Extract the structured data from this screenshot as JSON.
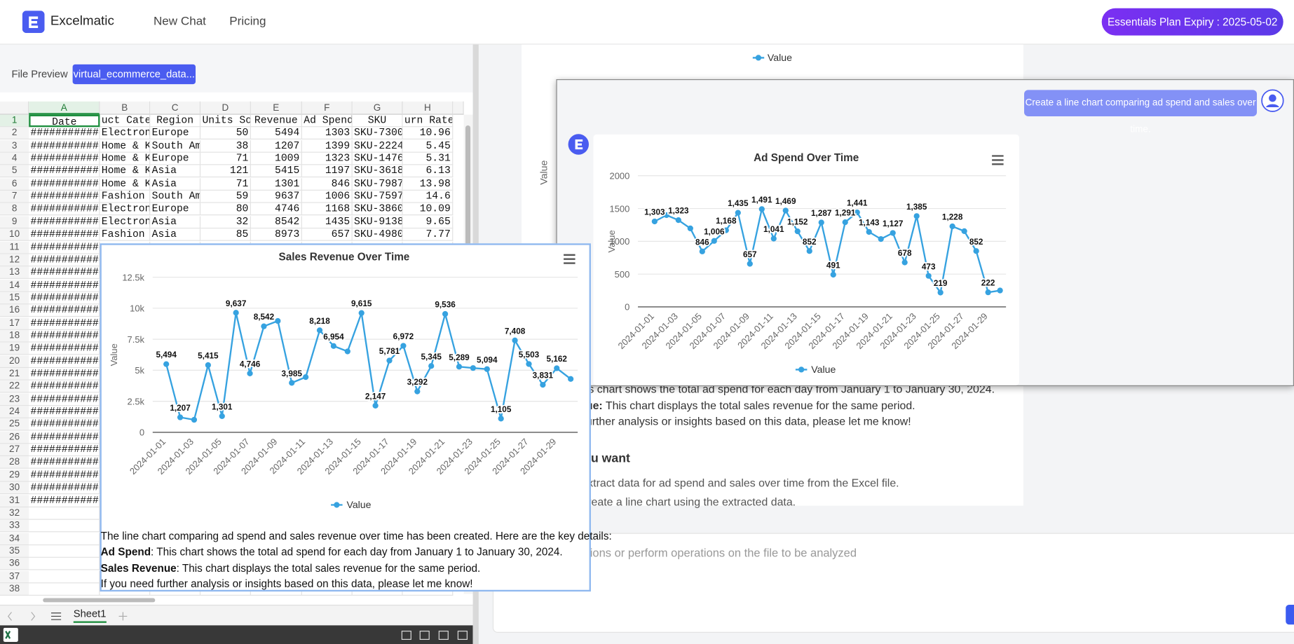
{
  "header": {
    "brand": "Excelmatic",
    "nav": [
      "New Chat",
      "Pricing"
    ],
    "plan": "Essentials Plan Expiry : 2025-05-02"
  },
  "file_preview": {
    "label": "File Preview",
    "file": "virtual_ecommerce_data..."
  },
  "spreadsheet": {
    "columns": [
      "A",
      "B",
      "C",
      "D",
      "E",
      "F",
      "G",
      "H"
    ],
    "row_numbers": [
      1,
      2,
      3,
      4,
      5,
      6,
      7,
      8,
      9,
      10,
      11,
      12,
      13,
      14,
      15,
      16,
      17,
      18,
      19,
      20,
      21,
      22,
      23,
      24,
      25,
      26,
      27,
      28,
      29,
      30,
      31,
      32,
      33,
      34,
      35,
      36,
      37,
      38
    ],
    "rows": [
      [
        "Date",
        "uct Categ",
        "Region",
        "Units Sol",
        "Revenue",
        "Ad Spend",
        "SKU",
        "urn Rate (%"
      ],
      [
        "############",
        "Electroni",
        "Europe",
        50,
        5494,
        1303,
        "SKU-7300",
        10.96
      ],
      [
        "############",
        "Home & Ki",
        "South Ame",
        38,
        1207,
        1399,
        "SKU-2224",
        5.45
      ],
      [
        "############",
        "Home & Ki",
        "Europe",
        71,
        1009,
        1323,
        "SKU-1476",
        5.31
      ],
      [
        "############",
        "Home & Ki",
        "Asia",
        121,
        5415,
        1197,
        "SKU-3618",
        6.13
      ],
      [
        "############",
        "Home & Ki",
        "Asia",
        71,
        1301,
        846,
        "SKU-7987",
        13.98
      ],
      [
        "############",
        "Fashion",
        "South Ame",
        59,
        9637,
        1006,
        "SKU-7597",
        14.6
      ],
      [
        "############",
        "Electroni",
        "Europe",
        80,
        4746,
        1168,
        "SKU-3860",
        10.09
      ],
      [
        "############",
        "Electroni",
        "Asia",
        32,
        8542,
        1435,
        "SKU-9138",
        9.65
      ],
      [
        "############",
        "Fashion",
        "Asia",
        85,
        8973,
        657,
        "SKU-4980",
        7.77
      ],
      [
        "############"
      ],
      [
        "############"
      ],
      [
        "############"
      ],
      [
        "############"
      ],
      [
        "############"
      ],
      [
        "############"
      ],
      [
        "############"
      ],
      [
        "############"
      ],
      [
        "############"
      ],
      [
        "############"
      ],
      [
        "############"
      ],
      [
        "############"
      ],
      [
        "############"
      ],
      [
        "############"
      ],
      [
        "############"
      ],
      [
        "############"
      ],
      [
        "############"
      ],
      [
        "############"
      ],
      [
        "############"
      ],
      [
        "############"
      ],
      [
        "############"
      ]
    ],
    "sheet_tab": "Sheet1"
  },
  "background_chat": {
    "legend": "Value",
    "y_label": "Value",
    "lines": [
      "is chart shows the total ad spend for each day from January 1 to January 30, 2024.",
      "This chart displays the total sales revenue for the same period.",
      "urther analysis or insights based on this data, please let me know!"
    ],
    "line2_label": "ue:",
    "heading": "u want",
    "steps": [
      "xtract data for ad spend and sales over time from the Excel file.",
      "reate a line chart using the extracted data."
    ],
    "input_placeholder": "ions or perform operations on the file to be analyzed"
  },
  "user_message": "Create a line chart comparing ad spend and sales over time.",
  "summary": {
    "intro": "The line chart comparing ad spend and sales revenue over time has been created. Here are the key details:",
    "items": [
      {
        "label": "Ad Spend",
        "text": ": This chart shows the total ad spend for each day from January 1 to January 30, 2024."
      },
      {
        "label": "Sales Revenue",
        "text": ": This chart displays the total sales revenue for the same period."
      }
    ],
    "outro": "If you need further analysis or insights based on this data, please let me know!"
  },
  "chart_data": [
    {
      "type": "line",
      "title": "Sales Revenue Over Time",
      "y_label": "Value",
      "categories": [
        "2024-01-01",
        null,
        "2024-01-03",
        null,
        "2024-01-05",
        null,
        "2024-01-07",
        null,
        "2024-01-09",
        null,
        "2024-01-11",
        null,
        "2024-01-13",
        null,
        "2024-01-15",
        null,
        "2024-01-17",
        null,
        "2024-01-19",
        null,
        "2024-01-21",
        null,
        "2024-01-23",
        null,
        "2024-01-25",
        null,
        "2024-01-27",
        null,
        "2024-01-29",
        null
      ],
      "series": [
        {
          "name": "Value",
          "color": "#36a2e0",
          "values": [
            5494,
            1207,
            1009,
            5415,
            1301,
            9637,
            4746,
            8542,
            8973,
            3985,
            4450,
            8218,
            6954,
            6520,
            9615,
            2147,
            5781,
            6972,
            3292,
            5345,
            9536,
            5289,
            5180,
            5094,
            1105,
            7408,
            5503,
            3831,
            5162,
            4300
          ],
          "value_labels": [
            "5,494",
            "1,207",
            null,
            "5,415",
            "1,301",
            "9,637",
            "4,746",
            "8,542",
            null,
            "3,985",
            null,
            "8,218",
            "6,954",
            null,
            "9,615",
            "2,147",
            "5,781",
            "6,972",
            "3,292",
            "5,345",
            "9,536",
            "5,289",
            null,
            "5,094",
            "1,105",
            "7,408",
            "5,503",
            "3,831",
            "5,162",
            null
          ]
        }
      ],
      "ylim": [
        0,
        12500
      ],
      "yticks": [
        0,
        {
          "value": 2500,
          "label": "2.5k"
        },
        {
          "value": 5000,
          "label": "5k"
        },
        {
          "value": 7500,
          "label": "7.5k"
        },
        {
          "value": 10000,
          "label": "10k"
        },
        {
          "value": 12500,
          "label": "12.5k"
        }
      ],
      "grid": true,
      "legend": "bottom"
    },
    {
      "type": "line",
      "title": "Ad Spend Over Time",
      "y_label": "Value",
      "categories": [
        "2024-01-01",
        null,
        "2024-01-03",
        null,
        "2024-01-05",
        null,
        "2024-01-07",
        null,
        "2024-01-09",
        null,
        "2024-01-11",
        null,
        "2024-01-13",
        null,
        "2024-01-15",
        null,
        "2024-01-17",
        null,
        "2024-01-19",
        null,
        "2024-01-21",
        null,
        "2024-01-23",
        null,
        "2024-01-25",
        null,
        "2024-01-27",
        null,
        "2024-01-29",
        null
      ],
      "series": [
        {
          "name": "Value",
          "color": "#36a2e0",
          "values": [
            1303,
            1399,
            1323,
            1197,
            846,
            1006,
            1168,
            1435,
            657,
            1491,
            1041,
            1469,
            1152,
            852,
            1287,
            491,
            1291,
            1441,
            1143,
            1035,
            1127,
            678,
            1385,
            473,
            219,
            1228,
            1155,
            852,
            222,
            250
          ],
          "value_labels": [
            "1,303",
            null,
            "1,323",
            null,
            "846",
            "1,006",
            "1,168",
            "1,435",
            "657",
            "1,491",
            "1,041",
            "1,469",
            "1,152",
            "852",
            "1,287",
            "491",
            "1,291",
            "1,441",
            "1,143",
            null,
            "1,127",
            "678",
            "1,385",
            "473",
            "219",
            "1,228",
            null,
            "852",
            "222",
            null
          ]
        }
      ],
      "ylim": [
        0,
        2000
      ],
      "yticks": [
        0,
        500,
        1000,
        1500,
        2000
      ],
      "grid": true,
      "legend": "bottom"
    }
  ]
}
